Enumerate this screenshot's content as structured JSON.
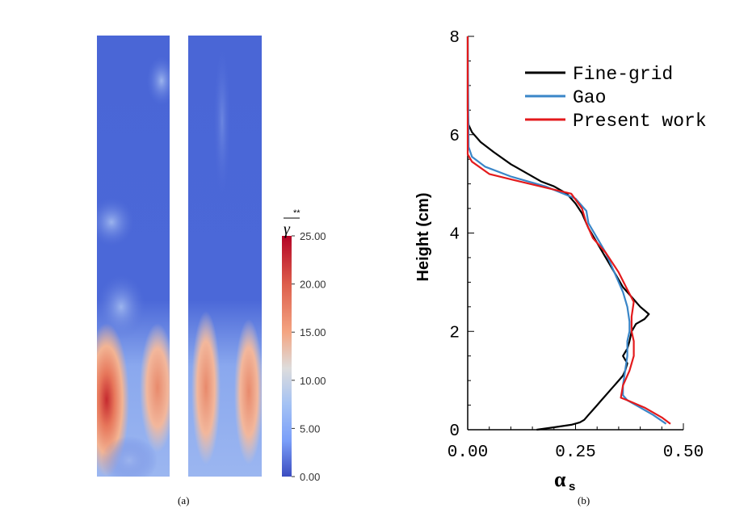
{
  "panel_a": {
    "label": "(a)",
    "colorbar": {
      "title": "γ**",
      "ticks": [
        "25.00",
        "20.00",
        "15.00",
        "10.00",
        "5.00",
        "0.00"
      ],
      "colors": [
        "#b40426",
        "#dd5e4c",
        "#f4a582",
        "#dddcdc",
        "#a4c2f4",
        "#7b9ff9",
        "#3b4cc0"
      ]
    }
  },
  "panel_b": {
    "label": "(b)"
  },
  "chart_data": {
    "type": "line",
    "xlabel": "α",
    "xlabel_sub": "s",
    "ylabel": "Height (cm)",
    "xlim": [
      0,
      0.5
    ],
    "ylim": [
      0,
      8
    ],
    "xticks": [
      "0.00",
      "0.25",
      "0.50"
    ],
    "yticks": [
      "0",
      "2",
      "4",
      "6",
      "8"
    ],
    "legend_position": "top-right",
    "series": [
      {
        "name": "Fine-grid",
        "color": "#000000",
        "x": [
          0.16,
          0.2,
          0.24,
          0.26,
          0.27,
          0.28,
          0.29,
          0.3,
          0.31,
          0.32,
          0.33,
          0.34,
          0.35,
          0.36,
          0.365,
          0.37,
          0.36,
          0.37,
          0.375,
          0.38,
          0.39,
          0.41,
          0.42,
          0.4,
          0.38,
          0.36,
          0.34,
          0.32,
          0.3,
          0.28,
          0.265,
          0.25,
          0.23,
          0.2,
          0.17,
          0.14,
          0.1,
          0.06,
          0.03,
          0.01,
          0.002,
          0.0,
          0.0
        ],
        "y": [
          0.0,
          0.05,
          0.1,
          0.15,
          0.2,
          0.3,
          0.4,
          0.5,
          0.6,
          0.7,
          0.8,
          0.9,
          1.0,
          1.1,
          1.2,
          1.35,
          1.5,
          1.65,
          1.8,
          2.0,
          2.15,
          2.25,
          2.35,
          2.5,
          2.7,
          2.9,
          3.2,
          3.5,
          3.8,
          4.1,
          4.4,
          4.6,
          4.8,
          4.95,
          5.05,
          5.2,
          5.4,
          5.65,
          5.85,
          6.05,
          6.2,
          6.5,
          8.0
        ]
      },
      {
        "name": "Gao",
        "color": "#3a86c8",
        "x": [
          0.46,
          0.43,
          0.4,
          0.37,
          0.36,
          0.36,
          0.365,
          0.37,
          0.37,
          0.375,
          0.375,
          0.37,
          0.36,
          0.34,
          0.32,
          0.3,
          0.28,
          0.275,
          0.25,
          0.18,
          0.1,
          0.04,
          0.01,
          0.002,
          0.0
        ],
        "y": [
          0.12,
          0.3,
          0.45,
          0.6,
          0.7,
          0.9,
          1.2,
          1.5,
          1.8,
          2.0,
          2.2,
          2.5,
          2.8,
          3.2,
          3.6,
          3.9,
          4.2,
          4.45,
          4.7,
          4.95,
          5.15,
          5.35,
          5.55,
          5.75,
          8.0
        ]
      },
      {
        "name": "Present work",
        "color": "#e31a1c",
        "x": [
          0.47,
          0.45,
          0.41,
          0.37,
          0.355,
          0.36,
          0.375,
          0.385,
          0.385,
          0.38,
          0.38,
          0.385,
          0.37,
          0.35,
          0.32,
          0.29,
          0.275,
          0.265,
          0.24,
          0.12,
          0.05,
          0.01,
          0.0,
          0.0
        ],
        "y": [
          0.12,
          0.25,
          0.45,
          0.6,
          0.65,
          0.9,
          1.2,
          1.5,
          1.8,
          2.0,
          2.3,
          2.6,
          2.85,
          3.2,
          3.6,
          3.9,
          4.2,
          4.5,
          4.8,
          5.05,
          5.2,
          5.45,
          5.6,
          8.0
        ]
      }
    ]
  }
}
